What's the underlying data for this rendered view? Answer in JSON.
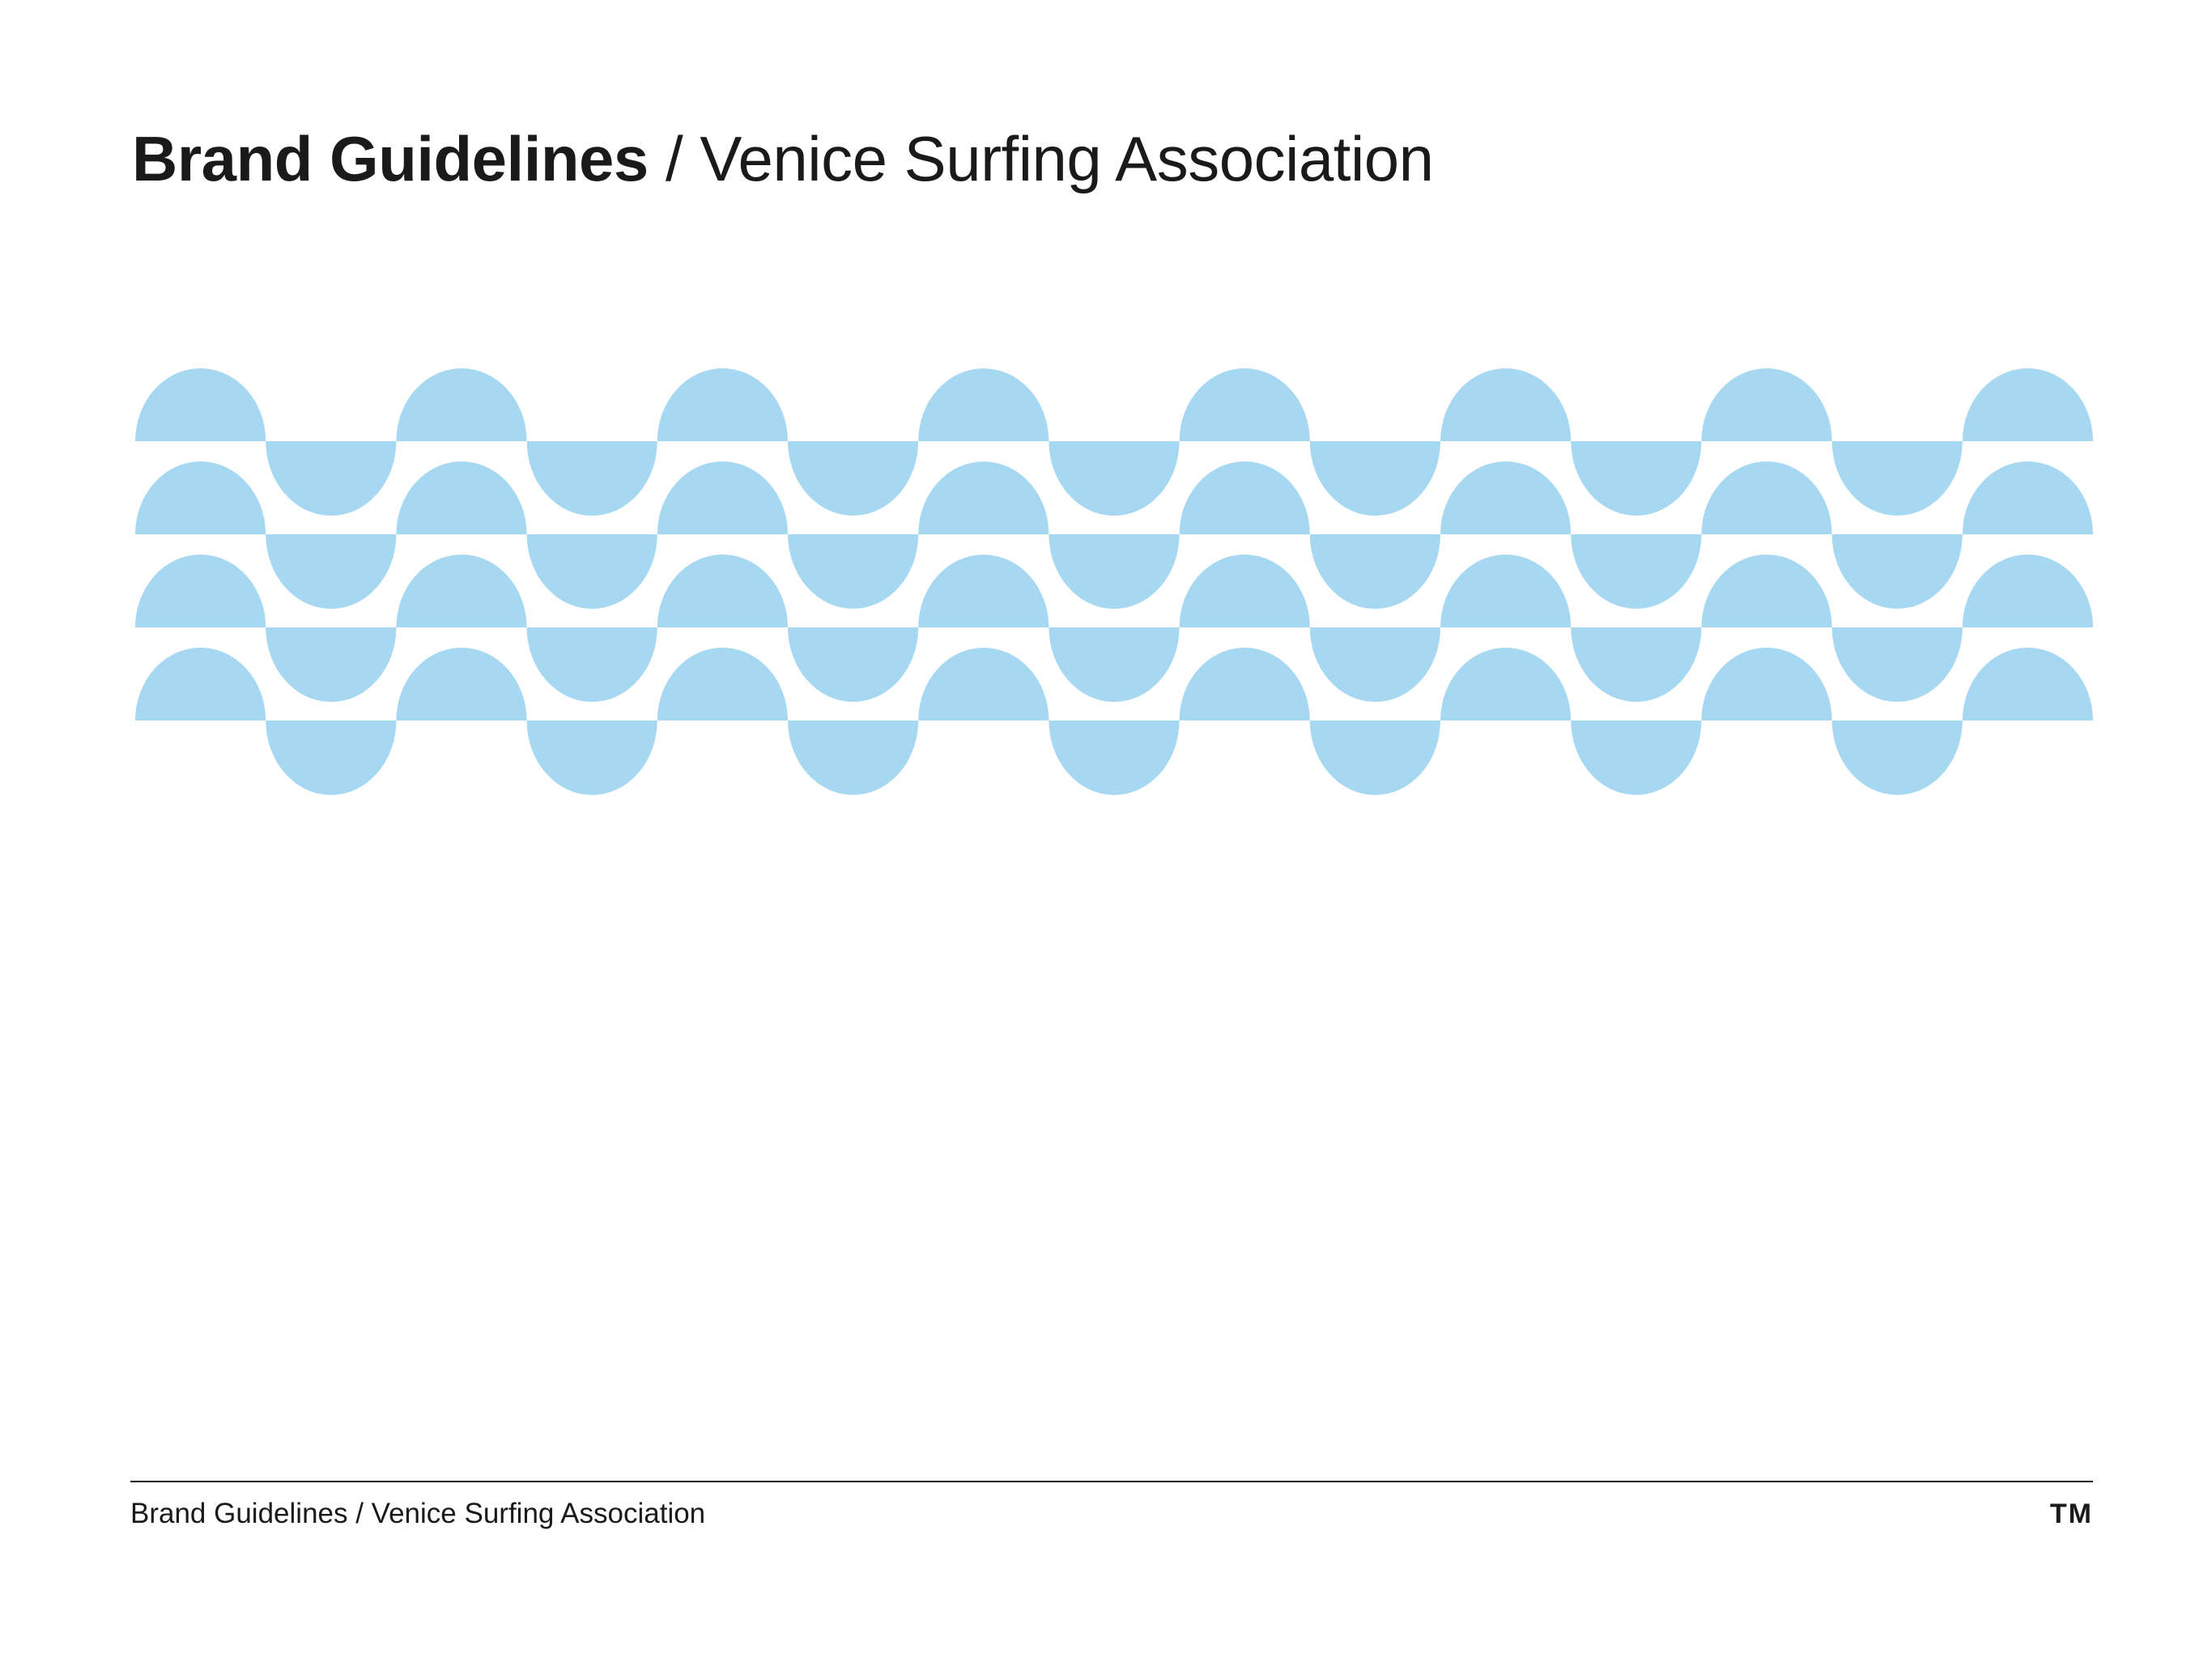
{
  "header": {
    "title_strong": "Brand Guidelines",
    "title_separator": " / ",
    "title_light": "Venice Surfing Association"
  },
  "pattern": {
    "name": "wave-pattern",
    "color": "#a7d8f2",
    "rows": 4,
    "columns": 8
  },
  "footer": {
    "text": "Brand Guidelines / Venice Surfing Association",
    "mark": "TM"
  },
  "colors": {
    "text": "#1a1a1a",
    "background": "#ffffff",
    "wave": "#a7d8f2"
  }
}
